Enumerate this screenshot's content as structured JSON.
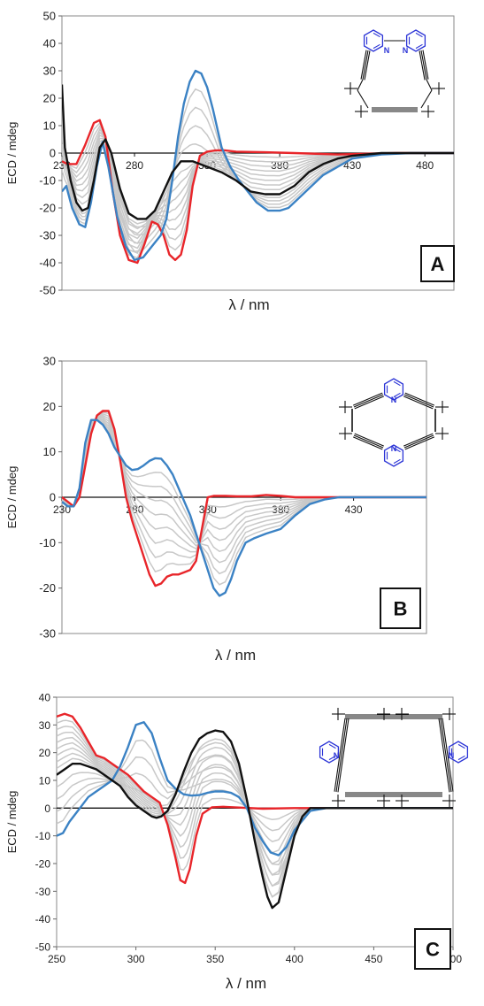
{
  "panels": [
    {
      "label": "A",
      "ylabel": "ECD / mdeg",
      "xlabel": "λ / nm"
    },
    {
      "label": "B",
      "ylabel": "ECD / mdeg",
      "xlabel": "λ / nm"
    },
    {
      "label": "C",
      "ylabel": "ECD / mdeg",
      "xlabel": "λ / nm"
    }
  ],
  "colors": {
    "red": "#e8252a",
    "blue": "#3b82c4",
    "black": "#111111",
    "grey": "#c8c8c8",
    "pyridine": "#2a33d6"
  },
  "chart_data": [
    {
      "type": "line",
      "label": "A",
      "xlabel": "λ / nm",
      "ylabel": "ECD / mdeg",
      "xlim": [
        230,
        500
      ],
      "ylim": [
        -50,
        50
      ],
      "xticks": [
        230,
        280,
        330,
        380,
        430,
        480
      ],
      "yticks": [
        -50,
        -40,
        -30,
        -20,
        -10,
        0,
        10,
        20,
        30,
        40,
        50
      ],
      "series": [
        {
          "color": "red",
          "x": [
            230,
            234,
            240,
            246,
            252,
            256,
            260,
            265,
            270,
            276,
            282,
            287,
            292,
            296,
            300,
            304,
            308,
            312,
            316,
            320,
            325,
            330,
            336,
            342,
            350,
            370,
            390,
            420,
            460,
            500
          ],
          "y": [
            -3,
            -4,
            -4,
            3,
            11,
            12,
            6,
            -14,
            -30,
            -39,
            -40,
            -33,
            -25,
            -26,
            -30,
            -37,
            -39,
            -37,
            -28,
            -12,
            -1,
            0.5,
            1,
            1,
            0.5,
            0.3,
            0,
            -0.5,
            0,
            0
          ]
        },
        {
          "color": "blue",
          "x": [
            230,
            233,
            237,
            242,
            246,
            250,
            254,
            258,
            262,
            268,
            274,
            280,
            286,
            292,
            298,
            302,
            306,
            310,
            314,
            318,
            322,
            326,
            330,
            334,
            340,
            346,
            352,
            358,
            364,
            372,
            380,
            386,
            392,
            400,
            410,
            420,
            430,
            450,
            470,
            500
          ],
          "y": [
            -14,
            -12,
            -20,
            -26,
            -27,
            -18,
            -5,
            4,
            -5,
            -23,
            -34,
            -39,
            -38,
            -34,
            -30,
            -24,
            -10,
            6,
            18,
            26,
            30,
            29,
            24,
            16,
            2,
            -5,
            -10,
            -14,
            -18,
            -21,
            -21,
            -20,
            -17,
            -13,
            -8,
            -5,
            -2,
            -0.5,
            0,
            0
          ]
        },
        {
          "color": "black",
          "x": [
            230,
            232,
            236,
            240,
            244,
            248,
            252,
            256,
            260,
            264,
            270,
            276,
            282,
            288,
            294,
            300,
            306,
            312,
            320,
            330,
            340,
            350,
            360,
            370,
            380,
            390,
            400,
            410,
            420,
            430,
            450,
            470,
            500
          ],
          "y": [
            25,
            2,
            -10,
            -18,
            -21,
            -20,
            -10,
            2,
            5,
            0,
            -13,
            -22,
            -24,
            -24,
            -21,
            -14,
            -7,
            -3,
            -3,
            -5,
            -7,
            -10,
            -14,
            -15,
            -15,
            -12,
            -7,
            -4,
            -2,
            -1,
            0,
            0,
            0
          ]
        }
      ],
      "structure": {
        "annotations": [
          "N",
          "N"
        ]
      }
    },
    {
      "type": "line",
      "label": "B",
      "xlabel": "λ / nm",
      "ylabel": "ECD / mdeg",
      "xlim": [
        230,
        480
      ],
      "ylim": [
        -30,
        30
      ],
      "xticks": [
        230,
        280,
        330,
        380,
        430
      ],
      "yticks": [
        -30,
        -20,
        -10,
        0,
        10,
        20,
        30
      ],
      "series": [
        {
          "color": "red",
          "x": [
            230,
            234,
            238,
            242,
            246,
            250,
            254,
            258,
            262,
            266,
            270,
            274,
            278,
            282,
            286,
            290,
            294,
            298,
            302,
            306,
            310,
            314,
            318,
            322,
            326,
            330,
            334,
            338,
            342,
            350,
            360,
            370,
            380,
            390,
            400,
            420,
            440,
            480
          ],
          "y": [
            0,
            -1,
            -2,
            0,
            7,
            14,
            18,
            19,
            19,
            15,
            8,
            0,
            -5,
            -9,
            -13,
            -17,
            -19.5,
            -19,
            -17.5,
            -17,
            -17,
            -16.5,
            -16,
            -14,
            -7,
            0,
            0.3,
            0.3,
            0.3,
            0.2,
            0.2,
            0.5,
            0.3,
            0,
            0,
            0,
            0,
            0
          ]
        },
        {
          "color": "blue",
          "x": [
            230,
            234,
            238,
            242,
            246,
            250,
            254,
            258,
            262,
            266,
            270,
            274,
            278,
            282,
            286,
            290,
            294,
            298,
            302,
            306,
            310,
            314,
            318,
            322,
            326,
            330,
            334,
            338,
            342,
            346,
            350,
            356,
            362,
            370,
            380,
            390,
            400,
            410,
            420,
            440,
            480
          ],
          "y": [
            -1,
            -2,
            -2,
            2,
            12,
            17,
            17,
            16,
            14,
            11,
            9,
            7,
            6,
            6.2,
            7,
            8,
            8.6,
            8.5,
            7,
            5,
            2,
            -1,
            -4,
            -8,
            -12,
            -16,
            -20,
            -21.7,
            -21,
            -18,
            -14,
            -10,
            -9,
            -8,
            -7,
            -4,
            -1.5,
            -0.5,
            0,
            0,
            0
          ]
        }
      ],
      "structure": {
        "annotations": [
          "N",
          "N"
        ]
      }
    },
    {
      "type": "line",
      "label": "C",
      "xlabel": "λ / nm",
      "ylabel": "ECD / mdeg",
      "xlim": [
        250,
        500
      ],
      "ylim": [
        -50,
        40
      ],
      "xticks": [
        250,
        300,
        350,
        400,
        450,
        500
      ],
      "yticks": [
        -50,
        -40,
        -30,
        -20,
        -10,
        0,
        10,
        20,
        30,
        40
      ],
      "series": [
        {
          "color": "red",
          "x": [
            250,
            255,
            260,
            265,
            270,
            275,
            280,
            285,
            290,
            295,
            300,
            305,
            310,
            315,
            320,
            325,
            328,
            331,
            334,
            338,
            342,
            348,
            355,
            365,
            380,
            400,
            450,
            500
          ],
          "y": [
            33,
            34,
            33,
            29,
            24,
            19,
            18,
            16,
            14,
            12,
            9,
            6,
            4,
            2,
            -6,
            -18,
            -26,
            -27,
            -22,
            -10,
            -2,
            0.3,
            0.5,
            0.2,
            -0.2,
            0,
            0,
            0
          ]
        },
        {
          "color": "blue",
          "x": [
            250,
            254,
            258,
            262,
            266,
            270,
            275,
            280,
            285,
            290,
            295,
            300,
            305,
            310,
            315,
            320,
            325,
            330,
            335,
            340,
            345,
            350,
            355,
            360,
            365,
            370,
            375,
            380,
            385,
            390,
            395,
            400,
            410,
            420,
            450,
            500
          ],
          "y": [
            -10,
            -9,
            -5,
            -2,
            1,
            4,
            6,
            8,
            10,
            15,
            22,
            30,
            31,
            27,
            18,
            10,
            7,
            5,
            4.5,
            4.7,
            5.5,
            6,
            6,
            5.5,
            4,
            0,
            -7,
            -12,
            -16,
            -17,
            -14,
            -8,
            -1,
            0,
            0,
            0
          ]
        },
        {
          "color": "black",
          "x": [
            250,
            255,
            260,
            265,
            270,
            275,
            280,
            285,
            290,
            295,
            300,
            305,
            310,
            313,
            316,
            320,
            325,
            330,
            335,
            340,
            345,
            350,
            355,
            360,
            365,
            370,
            375,
            380,
            383,
            386,
            390,
            395,
            400,
            405,
            410,
            420,
            450,
            500
          ],
          "y": [
            12,
            14,
            16,
            16,
            15,
            14,
            12,
            10,
            8,
            4,
            1,
            -1,
            -3,
            -3.5,
            -3,
            -1,
            5,
            13,
            20,
            25,
            27,
            28,
            27.5,
            24,
            16,
            3,
            -12,
            -25,
            -32,
            -36,
            -34,
            -22,
            -10,
            -3,
            0,
            0,
            0,
            0
          ]
        }
      ],
      "structure": {
        "annotations": [
          "N",
          "N"
        ]
      }
    }
  ]
}
